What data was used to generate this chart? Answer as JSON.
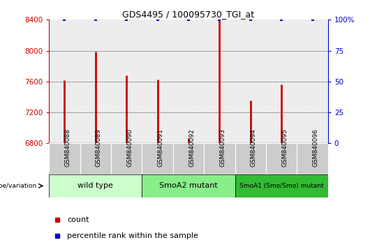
{
  "title": "GDS4495 / 100095730_TGI_at",
  "samples": [
    "GSM840088",
    "GSM840089",
    "GSM840090",
    "GSM840091",
    "GSM840092",
    "GSM840093",
    "GSM840094",
    "GSM840095",
    "GSM840096"
  ],
  "counts": [
    7620,
    7990,
    7680,
    7630,
    6870,
    8390,
    7350,
    7560,
    6800
  ],
  "percentile_values": [
    100,
    100,
    100,
    100,
    100,
    100,
    100,
    100,
    100
  ],
  "ylim_left": [
    6800,
    8400
  ],
  "ylim_right": [
    0,
    100
  ],
  "yticks_left": [
    6800,
    7200,
    7600,
    8000,
    8400
  ],
  "yticks_right": [
    0,
    25,
    50,
    75,
    100
  ],
  "bar_color": "#cc0000",
  "percentile_color": "#0000cc",
  "grid_lines": [
    7200,
    7600,
    8000
  ],
  "groups": [
    {
      "label": "wild type",
      "start": 0,
      "end": 3,
      "color": "#ccffcc"
    },
    {
      "label": "SmoA2 mutant",
      "start": 3,
      "end": 6,
      "color": "#88ee88"
    },
    {
      "label": "SmoA1 (Smo/Smo) mutant",
      "start": 6,
      "end": 9,
      "color": "#33bb33"
    }
  ],
  "xlabel_color": "#cc0000",
  "right_axis_color": "#0000cc",
  "legend_count_label": "count",
  "legend_percentile_label": "percentile rank within the sample",
  "genotype_label": "genotype/variation",
  "tick_label_bg": "#cccccc",
  "col_bg": "#cccccc"
}
